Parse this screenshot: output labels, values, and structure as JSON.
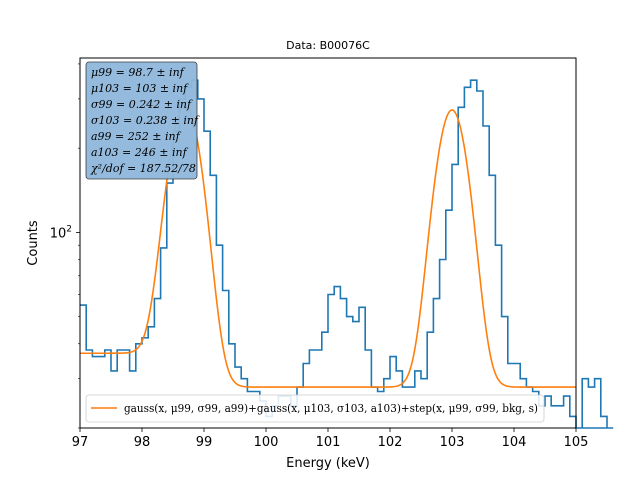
{
  "chart_data": {
    "type": "line",
    "title": "Data: B00076C",
    "xlabel": "Energy (keV)",
    "ylabel": "Counts",
    "xlim": [
      97,
      105
    ],
    "ylim": [
      20,
      420
    ],
    "yscale": "log",
    "x_ticks": [
      97,
      98,
      99,
      100,
      101,
      102,
      103,
      104,
      105
    ],
    "x_tick_labels": [
      "97",
      "98",
      "99",
      "100",
      "101",
      "102",
      "103",
      "104",
      "105"
    ],
    "y_ticks": [
      100
    ],
    "y_tick_labels": [
      "10",
      "2"
    ],
    "grid": false,
    "legend_position": "lower-center",
    "series": [
      {
        "kind": "step-histogram",
        "color": "#1f77b4",
        "bin_width": 0.1,
        "x_start": 97.0,
        "values": [
          55,
          38,
          36,
          36,
          38,
          32,
          38,
          38,
          32,
          40,
          42,
          46,
          58,
          88,
          150,
          230,
          300,
          330,
          350,
          300,
          230,
          160,
          90,
          62,
          40,
          33,
          30,
          27,
          27,
          25,
          22,
          24,
          26,
          26,
          24,
          28,
          34,
          38,
          38,
          44,
          60,
          64,
          58,
          50,
          48,
          54,
          38,
          28,
          27,
          30,
          36,
          32,
          28,
          28,
          32,
          30,
          44,
          58,
          80,
          120,
          175,
          280,
          330,
          350,
          320,
          240,
          160,
          90,
          50,
          34,
          34,
          30,
          28,
          27,
          24,
          26,
          24,
          24,
          26,
          22,
          18,
          30,
          28,
          30,
          22,
          14
        ]
      },
      {
        "kind": "fit-curve",
        "color": "#ff7f0e",
        "name": "gauss(x, μ99, σ99, a99)+gauss(x, μ103, σ103, a103)+step(x, μ99, σ99, bkg, s)",
        "mu_99": 98.7,
        "sigma_99": 0.242,
        "a_99": 252,
        "mu_103": 103,
        "sigma_103": 0.238,
        "a_103": 246,
        "bkg_left": 37,
        "bkg_right": 28
      }
    ],
    "fit_box_lines": [
      "μ99 = 98.7 ± inf",
      "μ103 = 103 ± inf",
      "σ99 = 0.242 ± inf",
      "σ103 = 0.238 ± inf",
      "a99 = 252 ± inf",
      "a103 = 246 ± inf",
      "χ²/dof = 187.52/78"
    ],
    "fit_box_color": "#8fb8dc",
    "legend_entries": [
      "gauss(x, μ99, σ99, a99)+gauss(x, μ103, σ103, a103)+step(x, μ99, σ99, bkg, s)"
    ]
  }
}
